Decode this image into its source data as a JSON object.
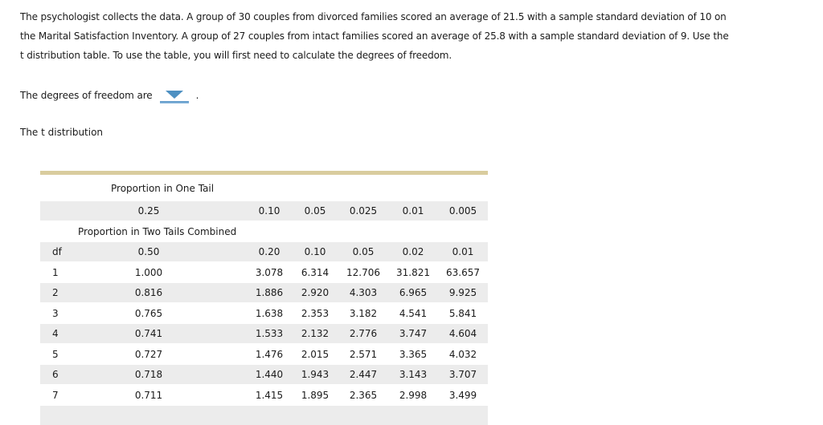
{
  "problem": {
    "lines": [
      "The psychologist collects the data. A group of 30 couples from divorced families scored an average of 21.5 with a sample standard deviation of 10 on",
      "the Marital Satisfaction Inventory. A group of 27 couples from intact families scored an average of 25.8 with a sample standard deviation of 9. Use the",
      "t distribution table. To use the table, you will first need to calculate the degrees of freedom."
    ]
  },
  "dof_prompt": {
    "text_before": "The degrees of freedom are",
    "text_after": ".",
    "dropdown_icon": "triangle-down-icon",
    "dropdown_color": "#4e90c2",
    "dropdown_value": ""
  },
  "table_title": "The t distribution",
  "t_table": {
    "accent_border_color": "#d9cc9e",
    "stripe_color": "#ececec",
    "one_tail_label": "Proportion in One Tail",
    "one_tail_values": [
      "0.25",
      "0.10",
      "0.05",
      "0.025",
      "0.01",
      "0.005"
    ],
    "two_tail_label": "Proportion in Two Tails Combined",
    "df_label": "df",
    "two_tail_values": [
      "0.50",
      "0.20",
      "0.10",
      "0.05",
      "0.02",
      "0.01"
    ],
    "rows": [
      {
        "df": "1",
        "values": [
          "1.000",
          "3.078",
          "6.314",
          "12.706",
          "31.821",
          "63.657"
        ]
      },
      {
        "df": "2",
        "values": [
          "0.816",
          "1.886",
          "2.920",
          "4.303",
          "6.965",
          "9.925"
        ]
      },
      {
        "df": "3",
        "values": [
          "0.765",
          "1.638",
          "2.353",
          "3.182",
          "4.541",
          "5.841"
        ]
      },
      {
        "df": "4",
        "values": [
          "0.741",
          "1.533",
          "2.132",
          "2.776",
          "3.747",
          "4.604"
        ]
      },
      {
        "df": "5",
        "values": [
          "0.727",
          "1.476",
          "2.015",
          "2.571",
          "3.365",
          "4.032"
        ]
      },
      {
        "df": "6",
        "values": [
          "0.718",
          "1.440",
          "1.943",
          "2.447",
          "3.143",
          "3.707"
        ]
      },
      {
        "df": "7",
        "values": [
          "0.711",
          "1.415",
          "1.895",
          "2.365",
          "2.998",
          "3.499"
        ]
      }
    ]
  }
}
